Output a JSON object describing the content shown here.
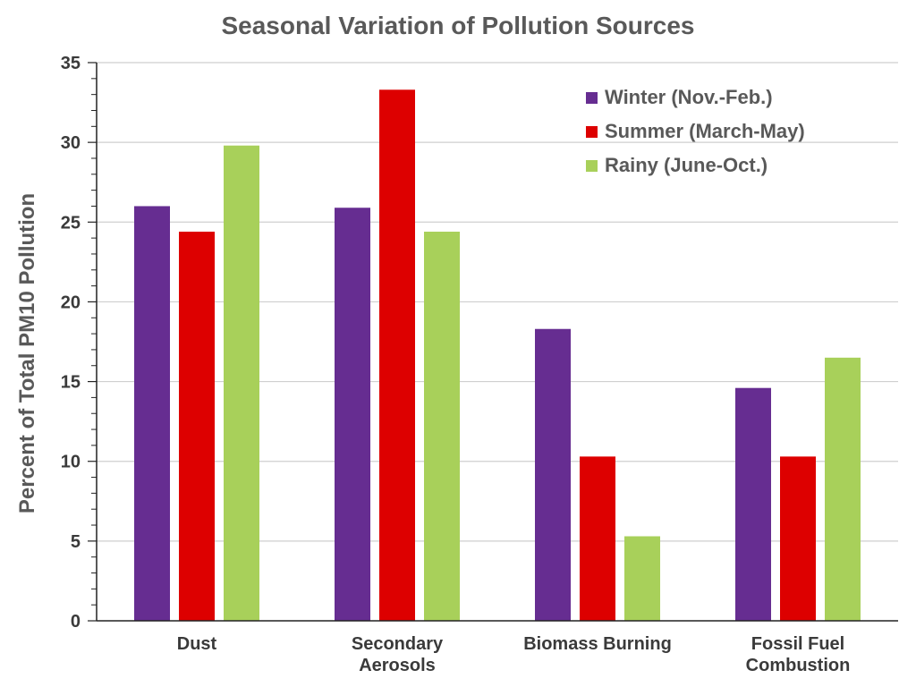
{
  "chart_data": {
    "type": "bar",
    "title": "Seasonal Variation of Pollution Sources",
    "ylabel": "Percent of Total PM10 Pollution",
    "xlabel": "",
    "ylim": [
      0,
      35
    ],
    "yticks": [
      "0",
      "5",
      "10",
      "15",
      "20",
      "25",
      "30",
      "35"
    ],
    "y_tick_values": [
      0,
      5,
      10,
      15,
      20,
      25,
      30,
      35
    ],
    "minor_tick_step": 1,
    "grid": true,
    "legend_position": "top-right",
    "categories": [
      [
        "Dust"
      ],
      [
        "Secondary",
        "Aerosols"
      ],
      [
        "Biomass Burning"
      ],
      [
        "Fossil Fuel",
        "Combustion"
      ]
    ],
    "series": [
      {
        "name": "Winter (Nov.-Feb.)",
        "color": "#662d91",
        "values": [
          26.0,
          25.9,
          18.3,
          14.6
        ]
      },
      {
        "name": "Summer (March-May)",
        "color": "#dd0000",
        "values": [
          24.4,
          33.3,
          10.3,
          10.3
        ]
      },
      {
        "name": "Rainy (June-Oct.)",
        "color": "#a8d05a",
        "values": [
          29.8,
          24.4,
          5.3,
          16.5
        ]
      }
    ]
  }
}
